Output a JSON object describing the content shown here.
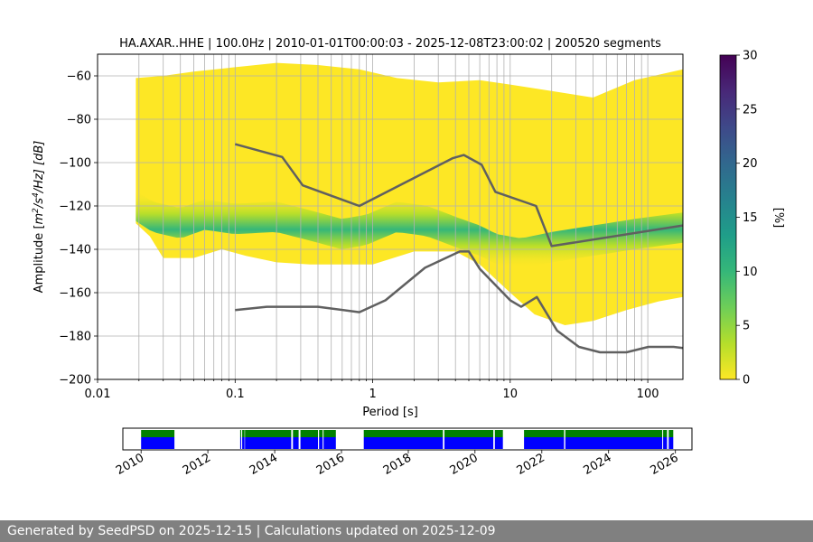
{
  "chart_data": [
    {
      "type": "heatmap",
      "title": "HA.AXAR..HHE | 100.0Hz | 2010-01-01T00:00:03 - 2025-12-08T23:00:02 | 200520 segments",
      "xlabel": "Period [s]",
      "ylabel_parts": [
        "Amplitude [",
        "m",
        "2",
        "/s",
        "4",
        "/Hz] [dB]"
      ],
      "x_scale": "log",
      "xlim": [
        0.01,
        180
      ],
      "ylim": [
        -200,
        -50
      ],
      "grid": true,
      "x_ticks": [
        {
          "value": 0.01,
          "label": "0.01"
        },
        {
          "value": 0.1,
          "label": "0.1"
        },
        {
          "value": 1,
          "label": "1"
        },
        {
          "value": 10,
          "label": "10"
        },
        {
          "value": 100,
          "label": "100"
        }
      ],
      "y_ticks": [
        -200,
        -180,
        -160,
        -140,
        -120,
        -100,
        -80,
        -60
      ],
      "colorbar": {
        "label": "[%]",
        "min": 0,
        "max": 30,
        "ticks": [
          0,
          5,
          10,
          15,
          20,
          25,
          30
        ],
        "colormap": [
          "#fde725",
          "#b5de2b",
          "#6ece58",
          "#35b779",
          "#1f9e89",
          "#26828e",
          "#31688e",
          "#3e4989",
          "#482878",
          "#440154"
        ]
      },
      "psd_band": {
        "period_start": 0.019,
        "top": [
          [
            0.019,
            -61
          ],
          [
            0.03,
            -60
          ],
          [
            0.05,
            -58
          ],
          [
            0.1,
            -56
          ],
          [
            0.2,
            -54
          ],
          [
            0.4,
            -55
          ],
          [
            0.8,
            -57
          ],
          [
            1.5,
            -61
          ],
          [
            3,
            -63
          ],
          [
            6,
            -62
          ],
          [
            10,
            -64
          ],
          [
            20,
            -67
          ],
          [
            40,
            -70
          ],
          [
            80,
            -62
          ],
          [
            180,
            -57
          ]
        ],
        "bottom": [
          [
            0.019,
            -128
          ],
          [
            0.024,
            -134
          ],
          [
            0.03,
            -144
          ],
          [
            0.05,
            -144
          ],
          [
            0.08,
            -140
          ],
          [
            0.12,
            -143
          ],
          [
            0.2,
            -146
          ],
          [
            0.35,
            -147
          ],
          [
            0.6,
            -147
          ],
          [
            1,
            -147
          ],
          [
            2,
            -141
          ],
          [
            4,
            -141
          ],
          [
            6,
            -147
          ],
          [
            10,
            -160
          ],
          [
            15,
            -170
          ],
          [
            25,
            -175
          ],
          [
            40,
            -173
          ],
          [
            70,
            -168
          ],
          [
            120,
            -164
          ],
          [
            180,
            -162
          ]
        ],
        "mode": [
          [
            0.019,
            -120
          ],
          [
            0.025,
            -125
          ],
          [
            0.04,
            -128
          ],
          [
            0.06,
            -124
          ],
          [
            0.1,
            -126
          ],
          [
            0.2,
            -125
          ],
          [
            0.35,
            -129
          ],
          [
            0.6,
            -133
          ],
          [
            0.9,
            -131
          ],
          [
            1.5,
            -125
          ],
          [
            2.5,
            -127
          ],
          [
            4,
            -132
          ],
          [
            6,
            -136
          ],
          [
            8,
            -140
          ],
          [
            12,
            -142
          ],
          [
            20,
            -139
          ],
          [
            40,
            -136
          ],
          [
            80,
            -133
          ],
          [
            180,
            -130
          ]
        ]
      },
      "series": [
        {
          "type": "line",
          "color": "#606060",
          "x": [
            0.1,
            0.22,
            0.31,
            0.8,
            3.8,
            4.6,
            6.2,
            7.8,
            15.4,
            20,
            180
          ],
          "y": [
            -91.5,
            -97.4,
            -110.5,
            -120,
            -98,
            -96.5,
            -101,
            -113.5,
            -120,
            -138.5,
            -129
          ]
        },
        {
          "type": "line",
          "color": "#606060",
          "x": [
            0.1,
            0.17,
            0.4,
            0.8,
            1.24,
            2.4,
            4.3,
            5,
            6,
            10,
            12,
            15.6,
            21.9,
            31.6,
            45,
            70,
            101,
            154,
            180
          ],
          "y": [
            -168,
            -166.5,
            -166.5,
            -169,
            -163.5,
            -148.5,
            -141,
            -141,
            -149,
            -163.5,
            -166.5,
            -162,
            -177.5,
            -185,
            -187.5,
            -187.5,
            -185,
            -185,
            -185.5
          ]
        }
      ]
    },
    {
      "type": "bar",
      "x_axis": "date",
      "xlim": [
        "2009-06-15",
        "2026-07-01"
      ],
      "x_ticks": [
        "2010",
        "2012",
        "2014",
        "2016",
        "2018",
        "2020",
        "2022",
        "2024",
        "2026"
      ],
      "colors": {
        "upper": "#008000",
        "lower": "#0000ff"
      },
      "availability": [
        [
          "2010-01-01",
          "2011-01-01"
        ],
        [
          "2012-12-20",
          "2012-12-31"
        ],
        [
          "2013-01-10",
          "2013-02-05"
        ],
        [
          "2013-02-10",
          "2014-07-01"
        ],
        [
          "2014-07-20",
          "2014-09-20"
        ],
        [
          "2014-10-10",
          "2015-04-20"
        ],
        [
          "2015-05-01",
          "2015-06-10"
        ],
        [
          "2015-06-20",
          "2015-11-01"
        ],
        [
          "2016-09-01",
          "2019-01-15"
        ],
        [
          "2019-02-01",
          "2020-07-20"
        ],
        [
          "2020-08-05",
          "2020-11-01"
        ],
        [
          "2021-06-20",
          "2022-09-01"
        ],
        [
          "2022-09-15",
          "2025-08-10"
        ],
        [
          "2025-08-20",
          "2025-10-01"
        ],
        [
          "2025-10-20",
          "2025-12-08"
        ]
      ]
    }
  ],
  "footer": {
    "text": "Generated by SeedPSD on 2025-12-15 | Calculations updated on 2025-12-09"
  }
}
